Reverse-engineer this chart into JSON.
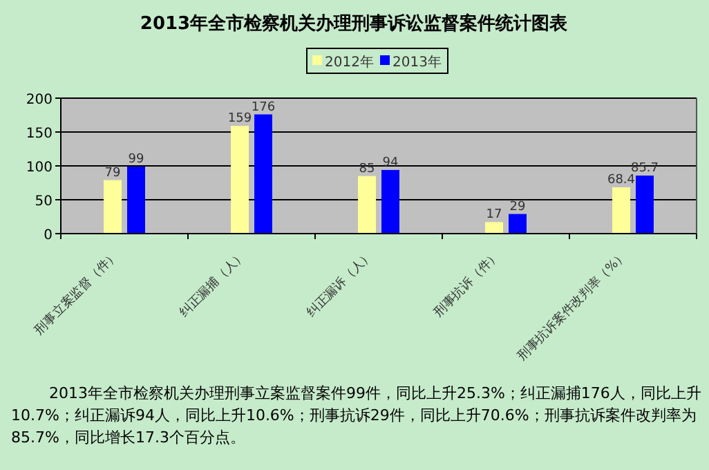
{
  "chart_data": {
    "type": "bar",
    "title": "2013年全市检察机关办理刑事诉讼监督案件统计图表",
    "categories": [
      "刑事立案监督（件）",
      "纠正漏捕（人）",
      "纠正漏诉（人）",
      "刑事抗诉（件）",
      "刑事抗诉案件改判率（%）"
    ],
    "series": [
      {
        "name": "2012年",
        "color": "#ffff99",
        "values": [
          79,
          159,
          85,
          17,
          68.4
        ]
      },
      {
        "name": "2013年",
        "color": "#0000ff",
        "values": [
          99,
          176,
          94,
          29,
          85.7
        ]
      }
    ],
    "ylim": [
      0,
      200
    ],
    "yticks": [
      0,
      50,
      100,
      150,
      200
    ],
    "grid": "y",
    "legend": "top",
    "data_labels": true,
    "annotations": [
      "2013年全市检察机关办理刑事立案监督案件99件，同比上升25.3%；纠正漏捕176人，同比上升10.7%；纠正漏诉94人，同比上升10.6%；刑事抗诉29件，同比上升70.6%；刑事抗诉案件改判率为85.7%，同比增长17.3个百分点。"
    ]
  }
}
